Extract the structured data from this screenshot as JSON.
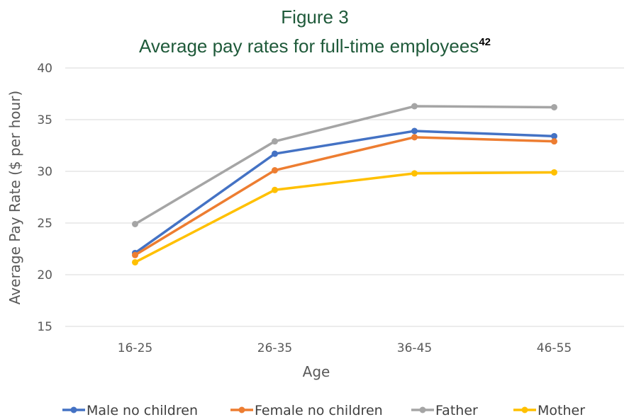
{
  "chart_data": {
    "type": "line",
    "title_line1": "Figure 3",
    "title_line2": "Average pay rates for full-time employees",
    "title_superscript": "42",
    "xlabel": "Age",
    "ylabel": "Average Pay Rate ($ per hour)",
    "categories": [
      "16-25",
      "26-35",
      "36-45",
      "46-55"
    ],
    "ylim": [
      15,
      40
    ],
    "yticks": [
      "15",
      "20",
      "25",
      "30",
      "35",
      "40"
    ],
    "grid": true,
    "legend_position": "bottom",
    "series": [
      {
        "name": "Male no children",
        "color": "#4472c4",
        "values": [
          22.1,
          31.7,
          33.9,
          33.4
        ]
      },
      {
        "name": "Female no children",
        "color": "#ed7d31",
        "values": [
          21.9,
          30.1,
          33.3,
          32.9
        ]
      },
      {
        "name": "Father",
        "color": "#a5a5a5",
        "values": [
          24.9,
          32.9,
          36.3,
          36.2
        ]
      },
      {
        "name": "Mother",
        "color": "#ffc000",
        "values": [
          21.2,
          28.2,
          29.8,
          29.9
        ]
      }
    ]
  }
}
